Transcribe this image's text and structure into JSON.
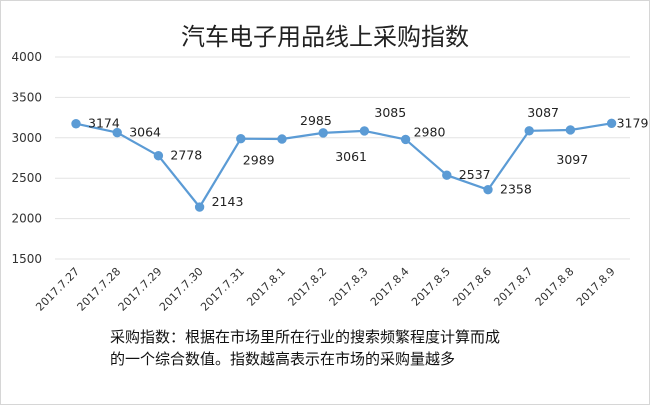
{
  "chart_data": {
    "type": "line",
    "title": "汽车电子用品线上采购指数",
    "categories": [
      "2017.7.27",
      "2017.7.28",
      "2017.7.29",
      "2017.7.30",
      "2017.7.31",
      "2017.8.1",
      "2017.8.2",
      "2017.8.3",
      "2017.8.4",
      "2017.8.5",
      "2017.8.6",
      "2017.8.7",
      "2017.8.8",
      "2017.8.9"
    ],
    "series": [
      {
        "values": [
          3174,
          3064,
          2778,
          2143,
          2989,
          2985,
          3061,
          3085,
          2980,
          2537,
          2358,
          3087,
          3097,
          3179
        ]
      }
    ],
    "ylim": [
      1500,
      4000
    ],
    "yticks": [
      1500,
      2000,
      2500,
      3000,
      3500,
      4000
    ],
    "grid": true,
    "legend": "none",
    "color": "#5b9bd5"
  },
  "note": {
    "line1": "采购指数：根据在市场里所在行业的搜索频繁程度计算而成",
    "line2": "的一个综合数值。指数越高表示在市场的采购量越多"
  }
}
